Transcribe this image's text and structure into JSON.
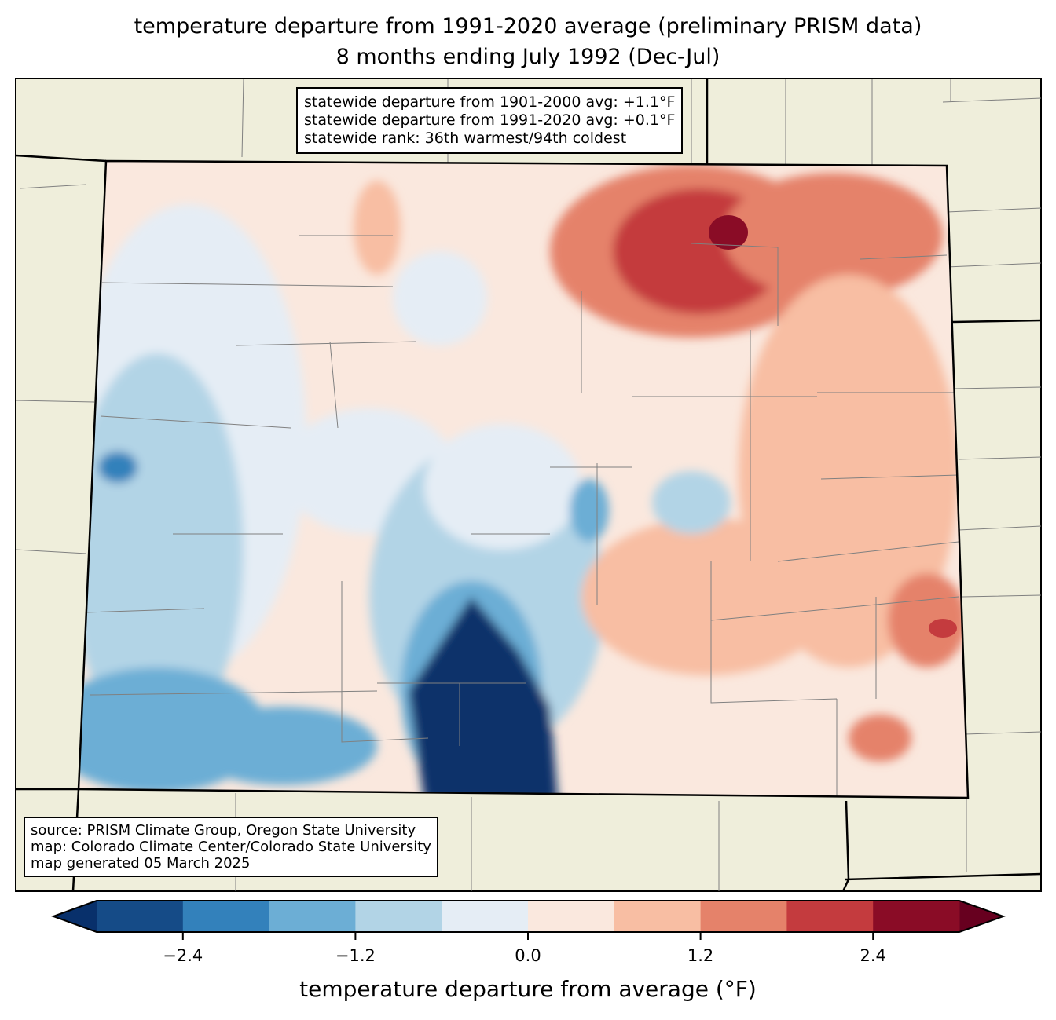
{
  "title": {
    "line1": "temperature departure from 1991-2020 average (preliminary PRISM data)",
    "line2": "8 months ending July 1992 (Dec-Jul)"
  },
  "stats_box": {
    "line1": "statewide departure from 1901-2000 avg: +1.1°F",
    "line2": "statewide departure from 1991-2020 avg: +0.1°F",
    "line3": "statewide rank: 36th warmest/94th coldest"
  },
  "source_box": {
    "line1": "source: PRISM Climate Group, Oregon State University",
    "line2": "map: Colorado Climate Center/Colorado State University",
    "line3": "map generated 05 March 2025"
  },
  "colorbar": {
    "title": "temperature departure from average (°F)",
    "levels": [
      -3.0,
      -2.4,
      -1.8,
      -1.2,
      -0.6,
      0.0,
      0.6,
      1.2,
      1.8,
      2.4,
      3.0
    ],
    "colors": [
      "#154b87",
      "#3381bb",
      "#6caed5",
      "#b2d4e6",
      "#e5edf5",
      "#fae8de",
      "#f8bea3",
      "#e5826a",
      "#c43b3e",
      "#8a0c26"
    ],
    "extend_low_color": "#08306b",
    "extend_high_color": "#67001f",
    "ticks": [
      "−2.4",
      "−1.2",
      "0.0",
      "1.2",
      "2.4"
    ],
    "tick_values": [
      -2.4,
      -1.2,
      0.0,
      1.2,
      2.4
    ]
  },
  "map_colors": {
    "land": "#efeedb",
    "border": "#000000",
    "county": "#808080"
  }
}
